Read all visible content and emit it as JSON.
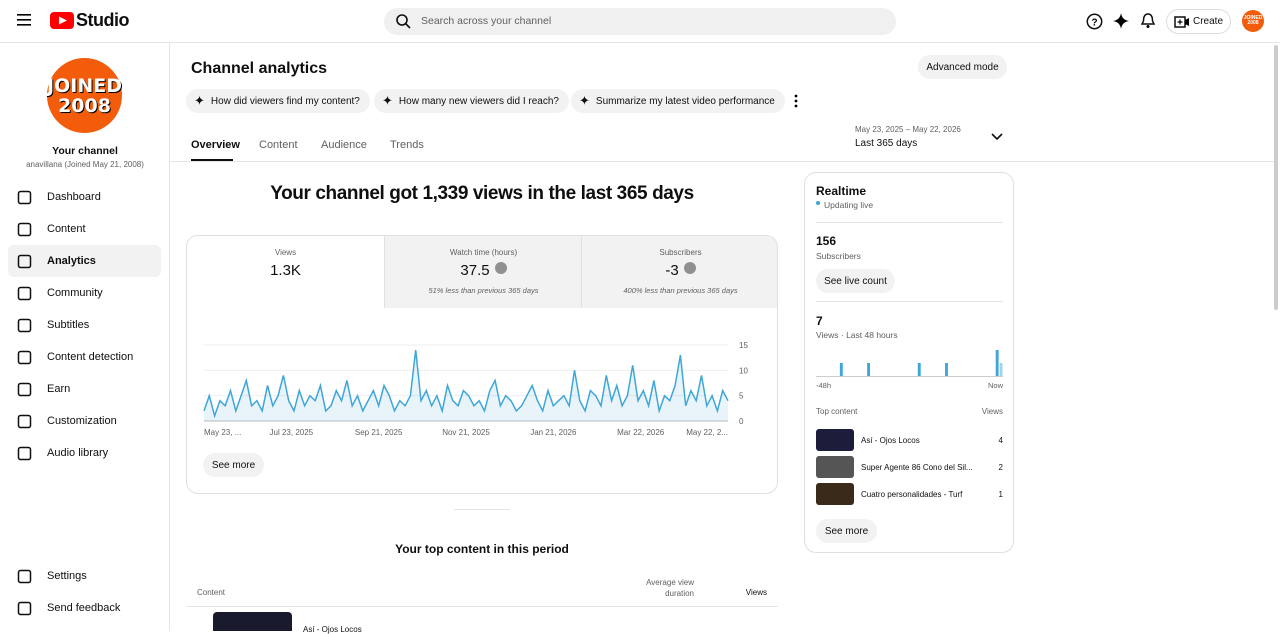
{
  "header": {
    "logo": "Studio",
    "search_placeholder": "Search across your channel",
    "create": "Create",
    "avatar": "JOINED 2008"
  },
  "sidebar": {
    "avatar": "JOINED 2008",
    "channel_title": "Your channel",
    "channel_handle": "anavillana (Joined May 21, 2008)",
    "nav": [
      "Dashboard",
      "Content",
      "Analytics",
      "Community",
      "Subtitles",
      "Content detection",
      "Earn",
      "Customization",
      "Audio library"
    ],
    "bottom": [
      "Settings",
      "Send feedback"
    ]
  },
  "page": {
    "title": "Channel analytics",
    "advanced_mode": "Advanced mode",
    "chips": [
      "How did viewers find my content?",
      "How many new viewers did I reach?",
      "Summarize my latest video performance"
    ],
    "tabs": [
      "Overview",
      "Content",
      "Audience",
      "Trends"
    ],
    "date_range": "May 23, 2025 – May 22, 2026",
    "period": "Last 365 days",
    "headline": "Your channel got 1,339 views in the last 365 days",
    "metrics": [
      {
        "label": "Views",
        "value": "1.3K"
      },
      {
        "label": "Watch time (hours)",
        "value": "37.5",
        "note": "51% less than previous 365 days"
      },
      {
        "label": "Subscribers",
        "value": "-3",
        "note": "400% less than previous 365 days"
      }
    ],
    "see_more": "See more",
    "top_content": {
      "title": "Your top content in this period",
      "columns": [
        "Content",
        "Average view duration",
        "Views"
      ],
      "rows": [
        "Así - Ojos Locos"
      ]
    }
  },
  "chart_data": {
    "type": "line",
    "color": "#3ea6d8",
    "x_labels": [
      "May 23, ...",
      "Jul 23, 2025",
      "Sep 21, 2025",
      "Nov 21, 2025",
      "Jan 21, 2026",
      "Mar 22, 2026",
      "May 22, 2..."
    ],
    "values": [
      2,
      5,
      1,
      4,
      3,
      6,
      2,
      5,
      8,
      3,
      4,
      2,
      7,
      3,
      5,
      9,
      4,
      2,
      6,
      3,
      5,
      4,
      7,
      2,
      3,
      6,
      4,
      8,
      3,
      5,
      2,
      4,
      6,
      3,
      7,
      5,
      2,
      4,
      3,
      5,
      14,
      4,
      6,
      3,
      5,
      2,
      7,
      4,
      3,
      6,
      5,
      3,
      4,
      2,
      6,
      8,
      3,
      5,
      4,
      2,
      3,
      5,
      7,
      4,
      2,
      6,
      3,
      4,
      5,
      3,
      10,
      4,
      2,
      6,
      5,
      3,
      9,
      4,
      7,
      3,
      5,
      11,
      4,
      6,
      3,
      8,
      2,
      5,
      4,
      7,
      13,
      3,
      6,
      4,
      9,
      3,
      5,
      2,
      6,
      4
    ],
    "ylim": [
      0,
      15
    ],
    "yticks": [
      0,
      5,
      10,
      15
    ]
  },
  "realtime": {
    "title": "Realtime",
    "status": "Updating live",
    "subscribers": "156",
    "subscribers_label": "Subscribers",
    "live_count": "See live count",
    "views": "7",
    "views_label": "Views · Last 48 hours",
    "start_label": "-48h",
    "end_label": "Now",
    "top_content": "Top content",
    "views_col": "Views",
    "rows": [
      {
        "title": "Así - Ojos Locos",
        "views": "4"
      },
      {
        "title": "Super Agente 86 Cono del Sil...",
        "views": "2"
      },
      {
        "title": "Cuatro personalidades - Turf",
        "views": "1"
      }
    ],
    "see_more": "See more",
    "chart": {
      "type": "bar",
      "color": "#3ea6d8",
      "current_color": "#9fd3ee",
      "values": [
        0,
        0,
        0,
        0,
        0,
        0,
        1,
        0,
        0,
        0,
        0,
        0,
        0,
        1,
        0,
        0,
        0,
        0,
        0,
        0,
        0,
        0,
        0,
        0,
        0,
        0,
        1,
        0,
        0,
        0,
        0,
        0,
        0,
        1,
        0,
        0,
        0,
        0,
        0,
        0,
        0,
        0,
        0,
        0,
        0,
        0,
        2,
        1
      ]
    }
  }
}
